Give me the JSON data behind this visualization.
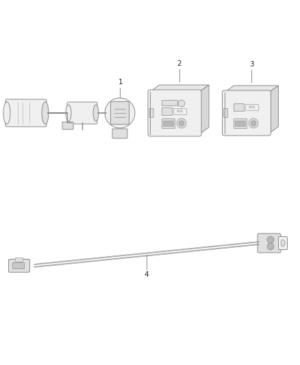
{
  "background_color": "#ffffff",
  "fig_width": 4.38,
  "fig_height": 5.33,
  "dpi": 100,
  "lc": "#555555",
  "lc2": "#888888",
  "fc_light": "#f0f0f0",
  "fc_mid": "#e0e0e0",
  "fc_dark": "#cccccc",
  "text_color": "#222222",
  "items": [
    {
      "id": 1,
      "label": "1"
    },
    {
      "id": 2,
      "label": "2"
    },
    {
      "id": 3,
      "label": "3"
    },
    {
      "id": 4,
      "label": "4"
    }
  ]
}
